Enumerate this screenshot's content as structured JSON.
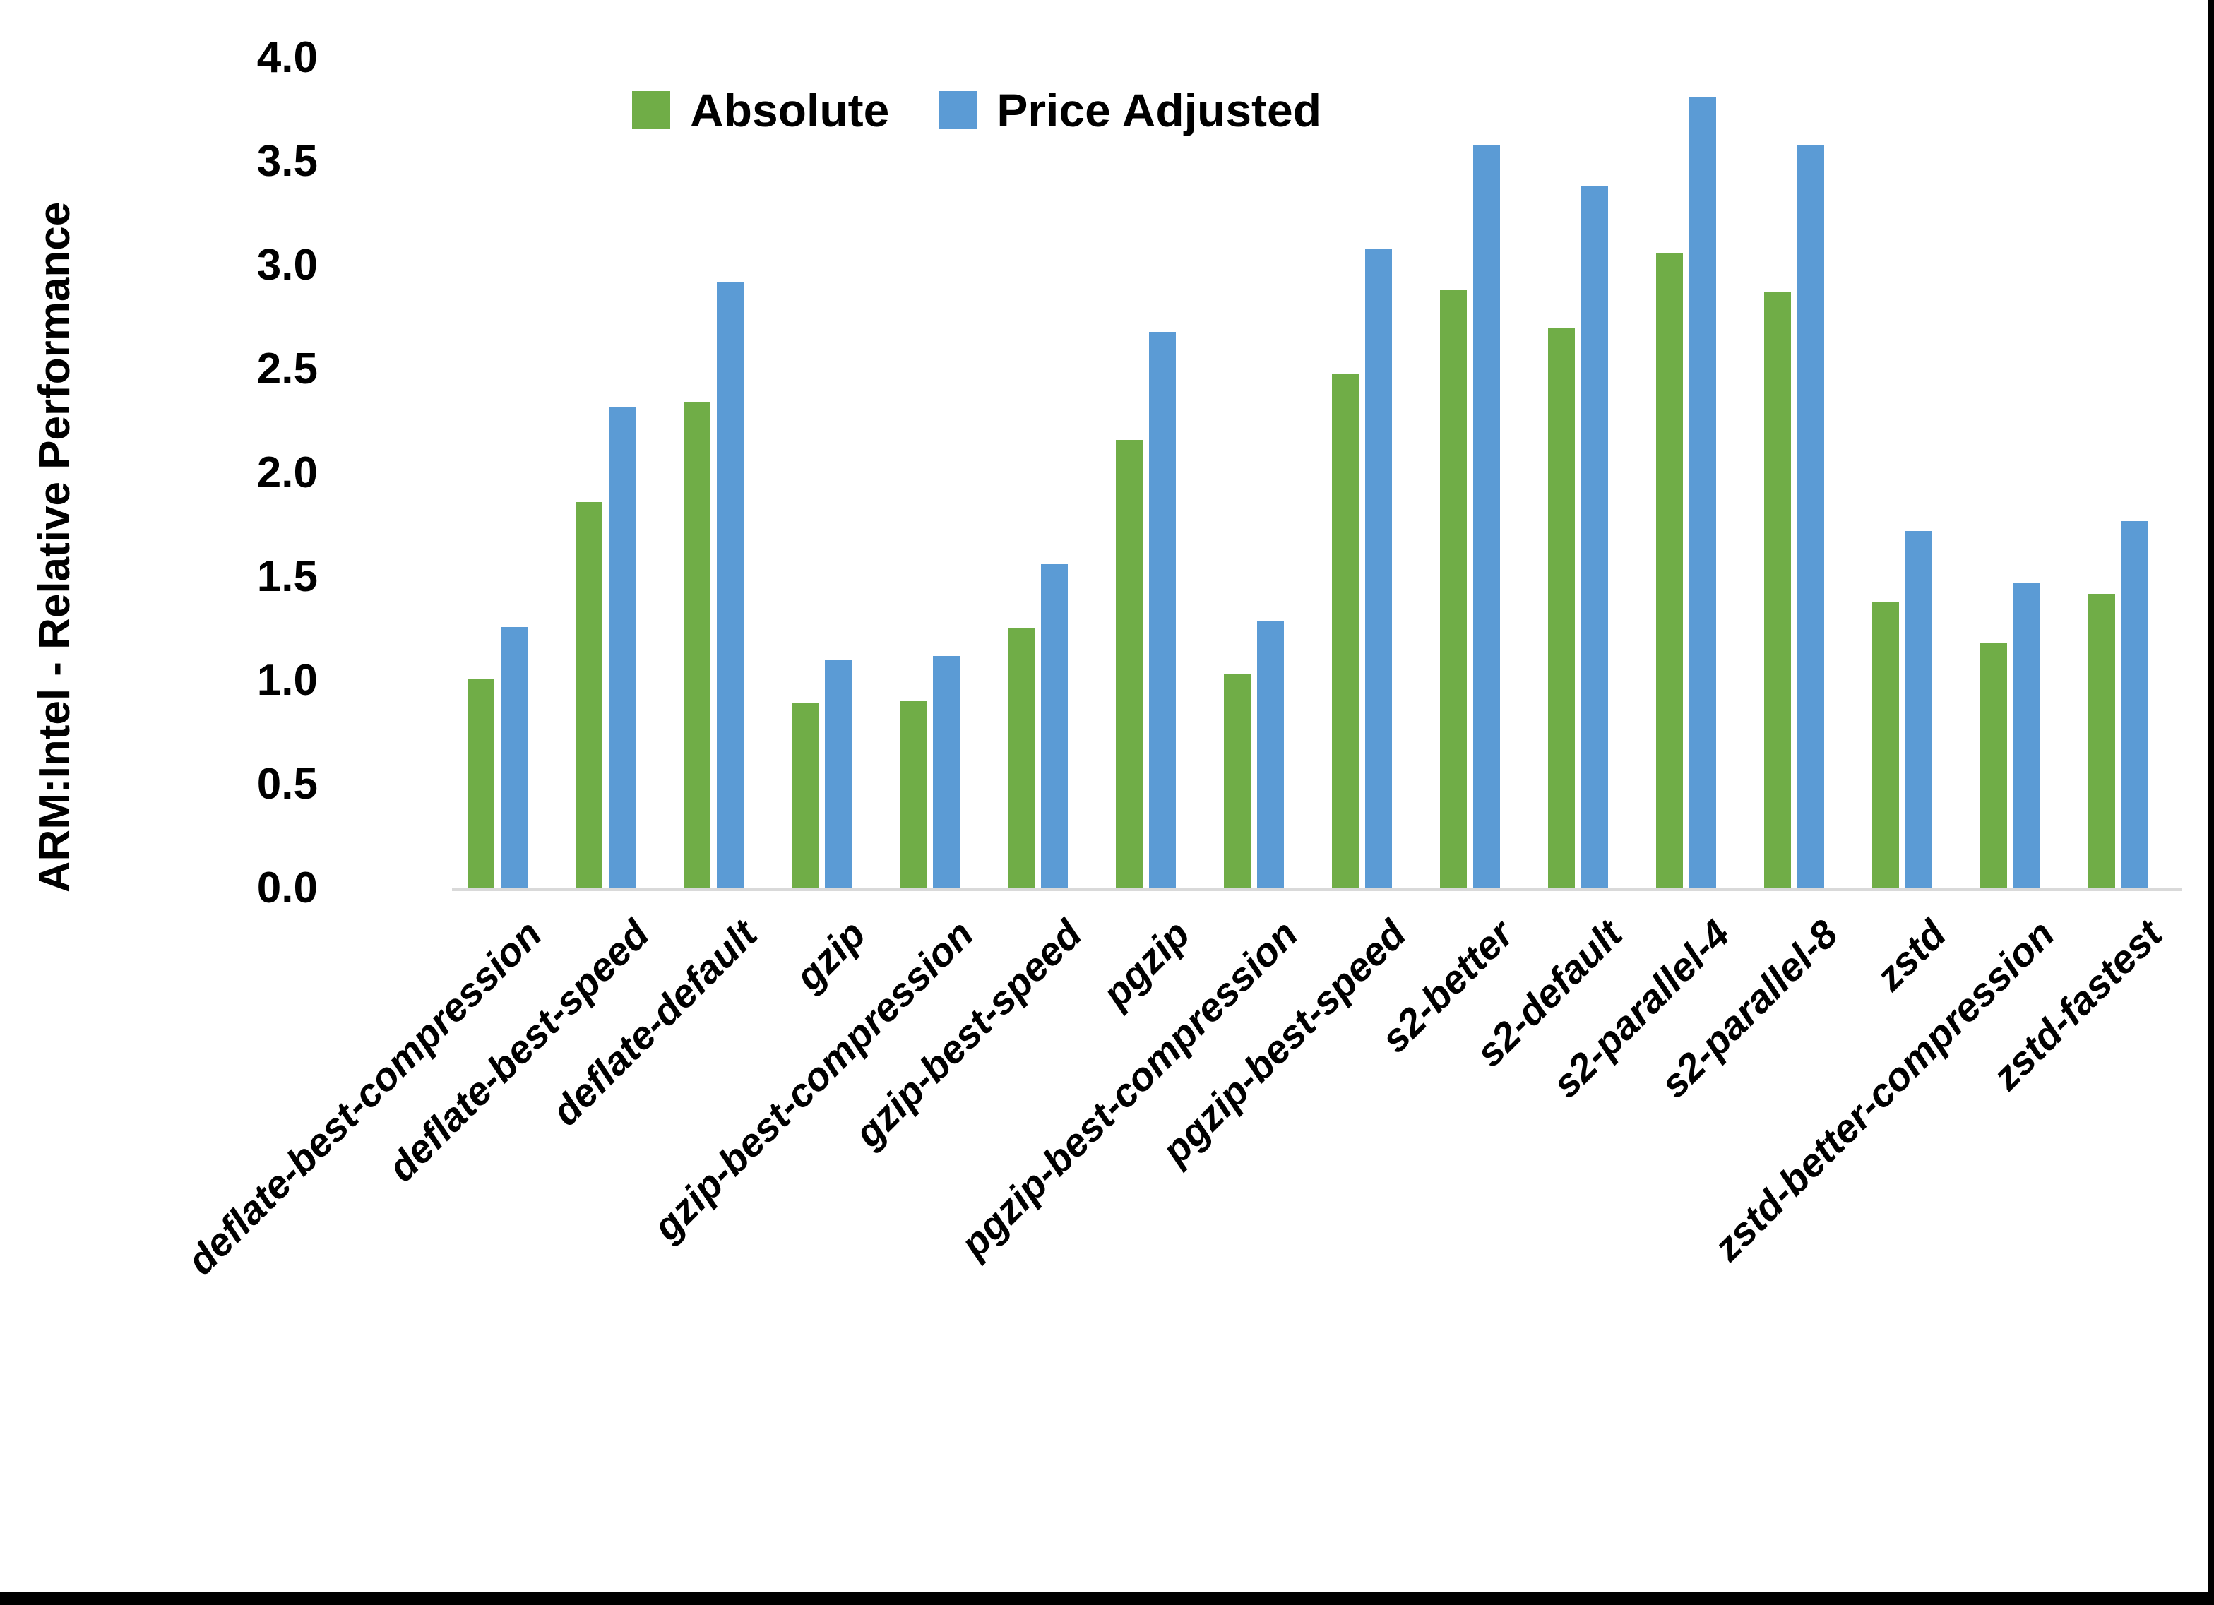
{
  "figure": {
    "background": "#ffffff",
    "border_color": "#000000"
  },
  "chart_data": {
    "type": "bar",
    "title": "",
    "xlabel": "",
    "ylabel": "ARM:Intel - Relative Performance",
    "ylim": [
      0.0,
      4.0
    ],
    "ytick_step": 0.5,
    "yticks": [
      "4.0",
      "3.5",
      "3.0",
      "2.5",
      "2.0",
      "1.5",
      "1.0",
      "0.5",
      "0.0"
    ],
    "grid": false,
    "legend_position": "top-center",
    "axis_line_color": "#D9D9D9",
    "categories": [
      "deflate-best-compression",
      "deflate-best-speed",
      "deflate-default",
      "gzip",
      "gzip-best-compression",
      "gzip-best-speed",
      "pgzip",
      "pgzip-best-compression",
      "pgzip-best-speed",
      "s2-better",
      "s2-default",
      "s2-parallel-4",
      "s2-parallel-8",
      "zstd",
      "zstd-better-compression",
      "zstd-fastest"
    ],
    "series": [
      {
        "name": "Absolute",
        "color": "#70AD47",
        "values": [
          1.01,
          1.86,
          2.34,
          0.89,
          0.9,
          1.25,
          2.16,
          1.03,
          2.48,
          2.88,
          2.7,
          3.06,
          2.87,
          1.38,
          1.18,
          1.42
        ]
      },
      {
        "name": "Price Adjusted",
        "color": "#5B9BD5",
        "values": [
          1.26,
          2.32,
          2.92,
          1.1,
          1.12,
          1.56,
          2.68,
          1.29,
          3.08,
          3.58,
          3.38,
          3.81,
          3.58,
          1.72,
          1.47,
          1.77
        ]
      }
    ]
  }
}
